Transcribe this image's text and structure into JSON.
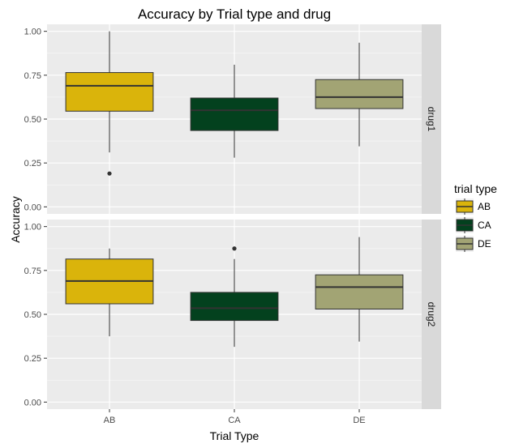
{
  "chart_data": {
    "type": "boxplot",
    "title": "Accuracy by Trial type and drug",
    "xlabel": "Trial Type",
    "ylabel": "Accuracy",
    "categories": [
      "AB",
      "CA",
      "DE"
    ],
    "ylim": [
      -0.04,
      1.04
    ],
    "yticks": [
      "0.00",
      "0.25",
      "0.50",
      "0.75",
      "1.00"
    ],
    "grid": true,
    "legend": {
      "title": "trial type",
      "position": "right",
      "entries": [
        "AB",
        "CA",
        "DE"
      ]
    },
    "colors": {
      "AB": "#DAB40B",
      "CA": "#03411E",
      "DE": "#A2A474"
    },
    "facets": [
      {
        "label": "drug1",
        "boxes": [
          {
            "category": "AB",
            "whisker_low": 0.31,
            "q1": 0.545,
            "median": 0.69,
            "q3": 0.765,
            "whisker_high": 1.0,
            "outliers": [
              0.19
            ]
          },
          {
            "category": "CA",
            "whisker_low": 0.28,
            "q1": 0.435,
            "median": 0.55,
            "q3": 0.62,
            "whisker_high": 0.81,
            "outliers": []
          },
          {
            "category": "DE",
            "whisker_low": 0.345,
            "q1": 0.56,
            "median": 0.625,
            "q3": 0.725,
            "whisker_high": 0.935,
            "outliers": []
          }
        ]
      },
      {
        "label": "drug2",
        "boxes": [
          {
            "category": "AB",
            "whisker_low": 0.375,
            "q1": 0.56,
            "median": 0.69,
            "q3": 0.815,
            "whisker_high": 0.875,
            "outliers": []
          },
          {
            "category": "CA",
            "whisker_low": 0.315,
            "q1": 0.465,
            "median": 0.535,
            "q3": 0.625,
            "whisker_high": 0.815,
            "outliers": [
              0.875
            ]
          },
          {
            "category": "DE",
            "whisker_low": 0.345,
            "q1": 0.53,
            "median": 0.655,
            "q3": 0.725,
            "whisker_high": 0.94,
            "outliers": []
          }
        ]
      }
    ]
  }
}
